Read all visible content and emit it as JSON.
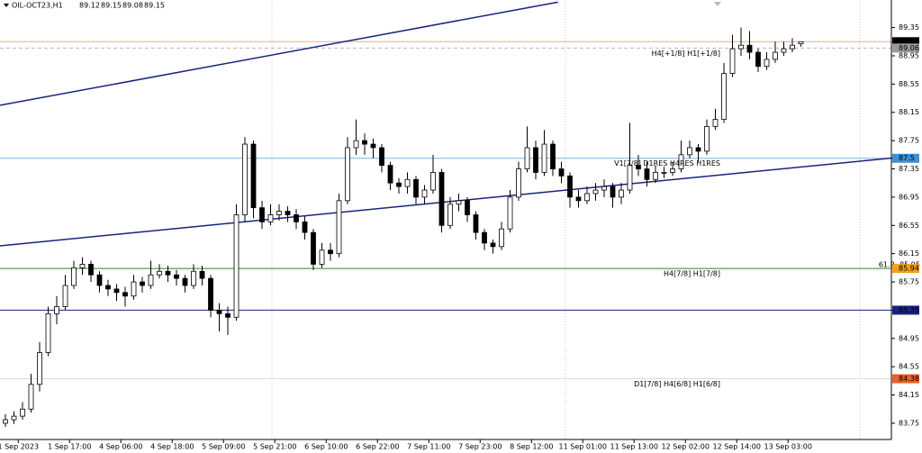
{
  "chart_data": {
    "type": "candlestick",
    "title": "OIL-OCT23,H1",
    "candles": [
      [
        83.75,
        83.88,
        83.7,
        83.8
      ],
      [
        83.8,
        83.92,
        83.74,
        83.85
      ],
      [
        83.85,
        84.05,
        83.8,
        83.95
      ],
      [
        83.95,
        84.45,
        83.9,
        84.3
      ],
      [
        84.3,
        84.9,
        84.2,
        84.75
      ],
      [
        84.75,
        85.4,
        84.7,
        85.3
      ],
      [
        85.3,
        85.55,
        85.15,
        85.4
      ],
      [
        85.4,
        85.85,
        85.35,
        85.7
      ],
      [
        85.7,
        86.05,
        85.65,
        85.95
      ],
      [
        85.95,
        86.1,
        85.85,
        86.0
      ],
      [
        86.0,
        86.05,
        85.75,
        85.85
      ],
      [
        85.85,
        85.9,
        85.6,
        85.7
      ],
      [
        85.7,
        85.78,
        85.55,
        85.65
      ],
      [
        85.65,
        85.72,
        85.48,
        85.6
      ],
      [
        85.6,
        85.68,
        85.4,
        85.55
      ],
      [
        85.55,
        85.85,
        85.5,
        85.75
      ],
      [
        85.75,
        85.82,
        85.6,
        85.7
      ],
      [
        85.7,
        86.05,
        85.65,
        85.85
      ],
      [
        85.85,
        86.0,
        85.8,
        85.9
      ],
      [
        85.9,
        85.98,
        85.75,
        85.85
      ],
      [
        85.85,
        85.92,
        85.7,
        85.8
      ],
      [
        85.8,
        85.85,
        85.6,
        85.7
      ],
      [
        85.7,
        86.0,
        85.65,
        85.9
      ],
      [
        85.9,
        85.98,
        85.7,
        85.8
      ],
      [
        85.8,
        85.85,
        85.25,
        85.35
      ],
      [
        85.35,
        85.45,
        85.05,
        85.3
      ],
      [
        85.3,
        85.4,
        85.0,
        85.25
      ],
      [
        85.25,
        86.85,
        85.2,
        86.7
      ],
      [
        86.7,
        87.8,
        86.6,
        87.7
      ],
      [
        87.7,
        87.75,
        86.65,
        86.8
      ],
      [
        86.8,
        86.9,
        86.5,
        86.6
      ],
      [
        86.6,
        86.85,
        86.55,
        86.7
      ],
      [
        86.7,
        86.85,
        86.62,
        86.75
      ],
      [
        86.75,
        86.82,
        86.6,
        86.7
      ],
      [
        86.7,
        86.78,
        86.5,
        86.6
      ],
      [
        86.6,
        86.68,
        86.35,
        86.45
      ],
      [
        86.45,
        86.5,
        85.92,
        86.0
      ],
      [
        86.0,
        86.3,
        85.95,
        86.2
      ],
      [
        86.2,
        86.3,
        86.05,
        86.15
      ],
      [
        86.15,
        87.0,
        86.1,
        86.9
      ],
      [
        86.9,
        87.8,
        86.85,
        87.65
      ],
      [
        87.65,
        88.05,
        87.55,
        87.75
      ],
      [
        87.75,
        87.85,
        87.55,
        87.7
      ],
      [
        87.7,
        87.78,
        87.5,
        87.65
      ],
      [
        87.65,
        87.7,
        87.3,
        87.4
      ],
      [
        87.4,
        87.45,
        87.05,
        87.15
      ],
      [
        87.15,
        87.22,
        87.0,
        87.1
      ],
      [
        87.1,
        87.3,
        87.0,
        87.2
      ],
      [
        87.2,
        87.25,
        86.85,
        86.95
      ],
      [
        86.95,
        87.12,
        86.85,
        87.05
      ],
      [
        87.05,
        87.55,
        87.0,
        87.3
      ],
      [
        87.3,
        87.35,
        86.45,
        86.55
      ],
      [
        86.55,
        86.95,
        86.5,
        86.85
      ],
      [
        86.85,
        87.0,
        86.75,
        86.9
      ],
      [
        86.9,
        86.95,
        86.6,
        86.7
      ],
      [
        86.7,
        86.75,
        86.35,
        86.45
      ],
      [
        86.45,
        86.5,
        86.2,
        86.3
      ],
      [
        86.3,
        86.35,
        86.15,
        86.25
      ],
      [
        86.25,
        86.6,
        86.2,
        86.5
      ],
      [
        86.5,
        87.05,
        86.45,
        86.95
      ],
      [
        86.95,
        87.45,
        86.9,
        87.35
      ],
      [
        87.35,
        87.95,
        87.3,
        87.65
      ],
      [
        87.65,
        87.75,
        87.2,
        87.3
      ],
      [
        87.3,
        87.9,
        87.25,
        87.7
      ],
      [
        87.7,
        87.75,
        87.25,
        87.35
      ],
      [
        87.35,
        87.45,
        87.15,
        87.25
      ],
      [
        87.25,
        87.3,
        86.8,
        86.95
      ],
      [
        86.95,
        87.05,
        86.8,
        86.9
      ],
      [
        86.9,
        87.1,
        86.85,
        87.0
      ],
      [
        87.0,
        87.15,
        86.9,
        87.05
      ],
      [
        87.05,
        87.2,
        86.95,
        87.1
      ],
      [
        87.1,
        87.15,
        86.8,
        86.95
      ],
      [
        86.95,
        87.15,
        86.85,
        87.05
      ],
      [
        87.05,
        88.0,
        87.0,
        87.4
      ],
      [
        87.4,
        87.55,
        87.25,
        87.35
      ],
      [
        87.35,
        87.45,
        87.1,
        87.2
      ],
      [
        87.2,
        87.4,
        87.15,
        87.3
      ],
      [
        87.3,
        87.38,
        87.22,
        87.3
      ],
      [
        87.3,
        87.45,
        87.25,
        87.35
      ],
      [
        87.35,
        87.75,
        87.3,
        87.55
      ],
      [
        87.55,
        87.75,
        87.5,
        87.65
      ],
      [
        87.65,
        87.7,
        87.45,
        87.6
      ],
      [
        87.6,
        88.05,
        87.55,
        87.95
      ],
      [
        87.95,
        88.2,
        87.9,
        88.05
      ],
      [
        88.05,
        88.85,
        88.0,
        88.7
      ],
      [
        88.7,
        89.25,
        88.65,
        89.05
      ],
      [
        89.05,
        89.35,
        88.95,
        89.1
      ],
      [
        89.1,
        89.3,
        88.9,
        89.0
      ],
      [
        89.0,
        89.05,
        88.72,
        88.8
      ],
      [
        88.8,
        89.0,
        88.75,
        88.9
      ],
      [
        88.9,
        89.15,
        88.85,
        89.0
      ],
      [
        89.0,
        89.15,
        88.95,
        89.05
      ],
      [
        89.05,
        89.2,
        89.0,
        89.1
      ],
      [
        89.12,
        89.15,
        89.08,
        89.15
      ]
    ],
    "categories": [
      "1 Sep 2023",
      "1 Sep 17:00",
      "4 Sep 06:00",
      "4 Sep 18:00",
      "5 Sep 09:00",
      "5 Sep 21:00",
      "6 Sep 10:00",
      "6 Sep 22:00",
      "7 Sep 11:00",
      "7 Sep 23:00",
      "8 Sep 12:00",
      "11 Sep 01:00",
      "11 Sep 13:00",
      "12 Sep 02:00",
      "12 Sep 14:00",
      "13 Sep 03:00"
    ],
    "ylim": [
      83.52,
      89.74
    ],
    "yticks": [
      83.75,
      84.15,
      84.55,
      84.95,
      85.35,
      85.75,
      86.15,
      86.55,
      86.95,
      87.35,
      87.75,
      88.15,
      88.55,
      88.95,
      89.35
    ],
    "levels": [
      {
        "value": 89.15,
        "line_color": "#e8a898",
        "box_color": "#000000"
      },
      {
        "value": 89.06,
        "line_color": "#b8b8b8",
        "box_color": "#9a9a9a",
        "dashed": true,
        "label": "H4[+1/8] H1[+1/8]",
        "label_color": "#7d8fa8"
      },
      {
        "value": 87.5,
        "line_color": "#7fb2e0",
        "box_color": "#3d8fd6",
        "label": "V1[7/8] D1RES H4RES H1RES",
        "label_color": "#3d8fd6"
      },
      {
        "value": 85.94,
        "line_color": "#2f8a1f",
        "box_color": "#f0a020",
        "label": "H4[7/8] H1[7/8]",
        "label_color": "#f0a020",
        "note": "61.8 -85.95",
        "note_color": "#2f8a1f"
      },
      {
        "value": 85.35,
        "line_color": "#1a237e",
        "box_color": "#1a237e"
      },
      {
        "value": 84.38,
        "line_color": "#ead8c8",
        "box_color": "#e8602a",
        "label": "D1[7/8] H4[6/8] H1[6/8]",
        "label_color": "#e8602a"
      }
    ],
    "trendlines": [
      {
        "color": "#1a237e",
        "x": [
          -0.63,
          64.6
        ],
        "y": [
          88.25,
          89.71
        ]
      },
      {
        "color": "#1a237e",
        "x": [
          -0.63,
          106.7
        ],
        "y": [
          86.26,
          87.54
        ]
      }
    ]
  }
}
